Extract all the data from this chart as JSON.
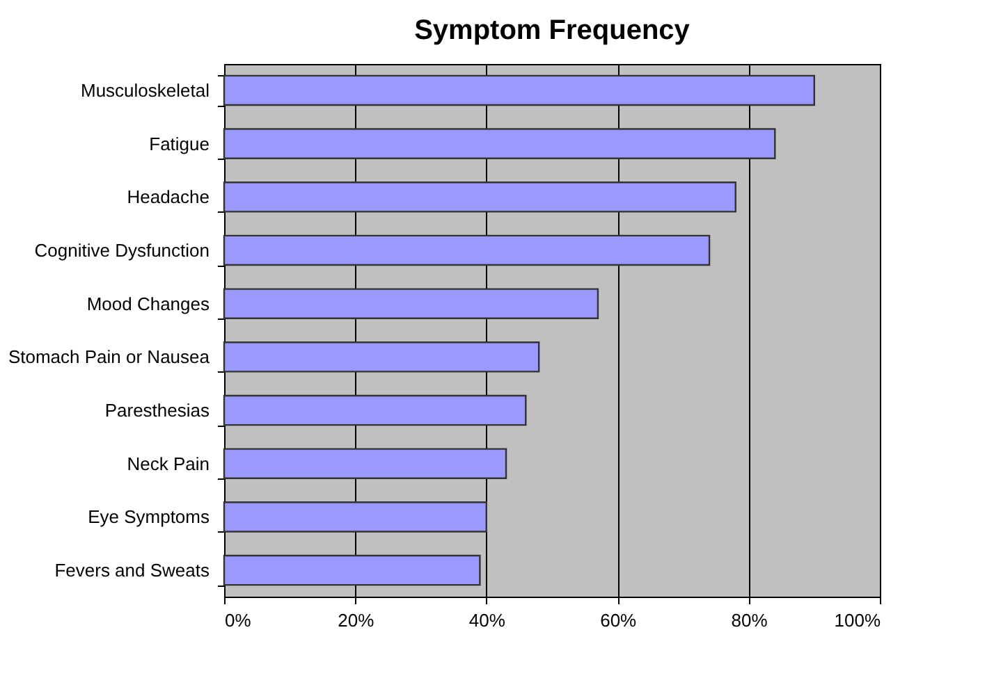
{
  "chart_data": {
    "type": "bar",
    "orientation": "horizontal",
    "title": "Symptom Frequency",
    "categories": [
      "Musculoskeletal",
      "Fatigue",
      "Headache",
      "Cognitive Dysfunction",
      "Mood Changes",
      "Stomach Pain or Nausea",
      "Paresthesias",
      "Neck Pain",
      "Eye Symptoms",
      "Fevers and Sweats"
    ],
    "values": [
      90,
      84,
      78,
      74,
      57,
      48,
      46,
      43,
      40,
      39
    ],
    "color": "#9999ff",
    "xlim": [
      0,
      100
    ],
    "xticks": [
      {
        "value": 0,
        "label": "0%"
      },
      {
        "value": 20,
        "label": "20%"
      },
      {
        "value": 40,
        "label": "40%"
      },
      {
        "value": 60,
        "label": "60%"
      },
      {
        "value": 80,
        "label": "80%"
      },
      {
        "value": 100,
        "label": "100%"
      }
    ],
    "grid": "x"
  }
}
